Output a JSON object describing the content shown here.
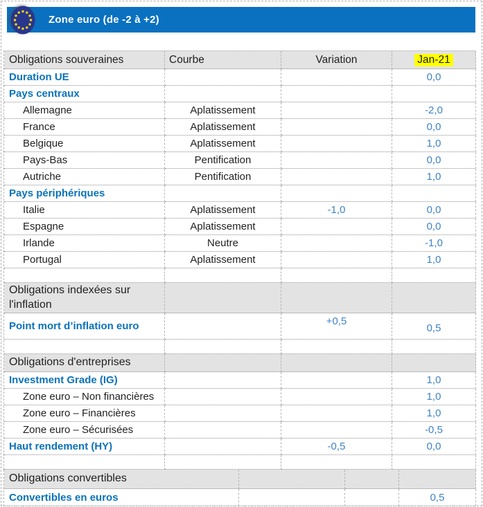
{
  "header": {
    "title": "Zone euro (de -2 à +2)",
    "flag_icon": "eu-flag-icon"
  },
  "colors": {
    "bar_blue": "#0a71c0",
    "emblem_navy": "#28368e",
    "star_yellow": "#ffd400",
    "category_blue": "#0a73ba",
    "value_blue": "#4083c4",
    "section_gray": "#e3e3e3",
    "highlight_yellow": "#ffff00"
  },
  "table": {
    "columns": [
      "Obligations souveraines",
      "Courbe",
      "Variation",
      "Jan-21"
    ],
    "highlight_column": "Jan-21",
    "rows": [
      {
        "type": "category",
        "label": "Duration UE",
        "courbe": "",
        "variation": "",
        "jan21": "0,0"
      },
      {
        "type": "category",
        "label": "Pays centraux",
        "courbe": "",
        "variation": "",
        "jan21": ""
      },
      {
        "type": "item",
        "label": "Allemagne",
        "courbe": "Aplatissement",
        "variation": "",
        "jan21": "-2,0"
      },
      {
        "type": "item",
        "label": "France",
        "courbe": "Aplatissement",
        "variation": "",
        "jan21": "0,0"
      },
      {
        "type": "item",
        "label": "Belgique",
        "courbe": "Aplatissement",
        "variation": "",
        "jan21": "1,0"
      },
      {
        "type": "item",
        "label": "Pays-Bas",
        "courbe": "Pentification",
        "variation": "",
        "jan21": "0,0"
      },
      {
        "type": "item",
        "label": "Autriche",
        "courbe": "Pentification",
        "variation": "",
        "jan21": "1,0"
      },
      {
        "type": "category",
        "label": "Pays périphériques",
        "courbe": "",
        "variation": "",
        "jan21": ""
      },
      {
        "type": "item",
        "label": "Italie",
        "courbe": "Aplatissement",
        "variation": "-1,0",
        "jan21": "0,0"
      },
      {
        "type": "item",
        "label": "Espagne",
        "courbe": "Aplatissement",
        "variation": "",
        "jan21": "0,0"
      },
      {
        "type": "item",
        "label": "Irlande",
        "courbe": "Neutre",
        "variation": "",
        "jan21": "-1,0"
      },
      {
        "type": "item",
        "label": "Portugal",
        "courbe": "Aplatissement",
        "variation": "",
        "jan21": "1,0"
      },
      {
        "type": "empty",
        "label": "",
        "courbe": "",
        "variation": "",
        "jan21": ""
      },
      {
        "type": "section",
        "twoline": true,
        "label": "Obligations indexées sur l'inflation",
        "courbe": "",
        "variation": "",
        "jan21": ""
      },
      {
        "type": "category",
        "tall": true,
        "label": "Point mort d’inflation euro",
        "courbe": "",
        "variation": "+0,5",
        "jan21": "0,5"
      },
      {
        "type": "empty",
        "label": "",
        "courbe": "",
        "variation": "",
        "jan21": ""
      },
      {
        "type": "section",
        "label": "Obligations d'entreprises",
        "courbe": "",
        "variation": "",
        "jan21": ""
      },
      {
        "type": "category",
        "label": "Investment Grade (IG)",
        "courbe": "",
        "variation": "",
        "jan21": "1,0"
      },
      {
        "type": "item",
        "label": "Zone euro – Non financières",
        "courbe": "",
        "variation": "",
        "jan21": "1,0"
      },
      {
        "type": "item",
        "label": "Zone euro – Financières",
        "courbe": "",
        "variation": "",
        "jan21": "1,0"
      },
      {
        "type": "item",
        "label": "Zone euro – Sécurisées",
        "courbe": "",
        "variation": "",
        "jan21": "-0,5"
      },
      {
        "type": "category",
        "label": "Haut rendement (HY)",
        "courbe": "",
        "variation": "-0,5",
        "jan21": "0,0"
      },
      {
        "type": "empty",
        "label": "",
        "courbe": "",
        "variation": "",
        "jan21": ""
      }
    ]
  },
  "table2": {
    "rows": [
      {
        "type": "section",
        "label": "Obligations convertibles",
        "courbe": "",
        "variation": "",
        "jan21": ""
      },
      {
        "type": "category",
        "label": "Convertibles en euros",
        "courbe": "",
        "variation": "",
        "jan21": "0,5"
      }
    ]
  }
}
